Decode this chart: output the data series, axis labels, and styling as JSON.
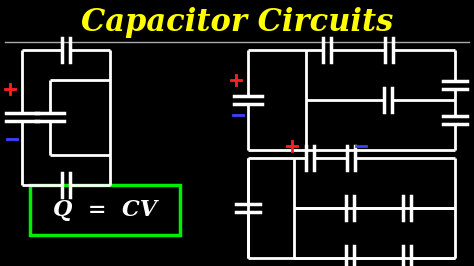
{
  "background_color": "#000000",
  "title": "Capacitor Circuits",
  "title_color": "#FFFF00",
  "title_fontsize": 22,
  "wire_color": "#FFFFFF",
  "wire_lw": 2.0,
  "cap_lw": 2.5,
  "cap_color": "#FFFFFF",
  "plus_color": "#FF2020",
  "minus_color": "#4040FF",
  "formula_text": "Q  =  CV",
  "formula_box_color": "#00EE00",
  "formula_text_color": "#FFFFFF",
  "sep_color": "#AAAAAA"
}
